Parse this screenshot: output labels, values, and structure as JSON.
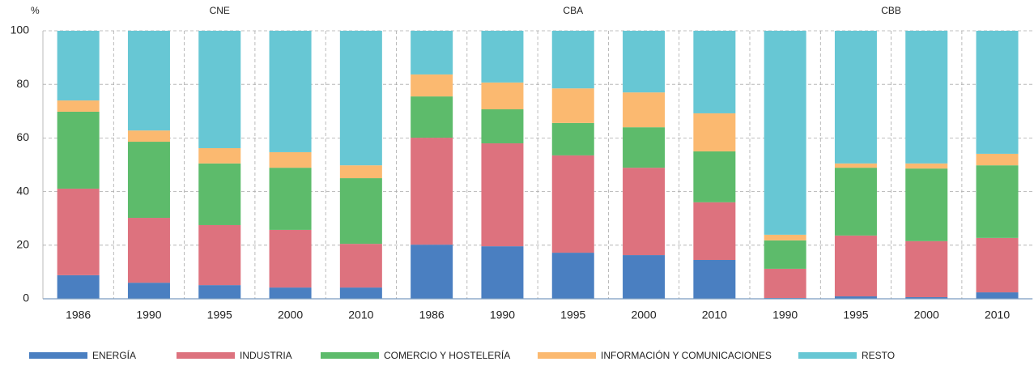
{
  "chart_data": {
    "type": "stacked-bar",
    "y_label": "%",
    "groups": [
      {
        "label": "CNE",
        "categories": [
          "1986",
          "1990",
          "1995",
          "2000",
          "2010"
        ]
      },
      {
        "label": "CBA",
        "categories": [
          "1986",
          "1990",
          "1995",
          "2000",
          "2010"
        ]
      },
      {
        "label": "CBB",
        "categories": [
          "1990",
          "1995",
          "2000",
          "2010"
        ]
      }
    ],
    "series": [
      {
        "name": "ENERGÍA",
        "color": "#4a7fc1",
        "values": [
          8.8,
          6.0,
          5.1,
          4.2,
          4.2,
          20.2,
          19.6,
          17.2,
          16.3,
          14.5,
          0.3,
          0.9,
          0.6,
          2.4
        ]
      },
      {
        "name": "INDUSTRIA",
        "color": "#dd727e",
        "values": [
          32.3,
          24.2,
          22.4,
          21.5,
          16.3,
          39.9,
          38.4,
          36.3,
          32.6,
          21.5,
          10.9,
          22.7,
          20.9,
          20.3
        ]
      },
      {
        "name": "COMERCIO Y HOSTELERÍA",
        "color": "#5dbb6b",
        "values": [
          28.7,
          28.4,
          23.0,
          23.2,
          24.5,
          15.4,
          12.7,
          12.1,
          15.1,
          19.0,
          10.6,
          25.3,
          27.1,
          27.1
        ]
      },
      {
        "name": "INFORMACIÓN Y COMUNICACIONES",
        "color": "#fbb970",
        "values": [
          4.2,
          4.2,
          5.7,
          5.8,
          4.8,
          8.2,
          10.0,
          12.9,
          13.0,
          14.2,
          2.1,
          1.6,
          1.9,
          4.3
        ]
      },
      {
        "name": "RESTO",
        "color": "#67c7d4",
        "values": [
          26.0,
          37.2,
          43.8,
          45.3,
          50.2,
          16.3,
          19.3,
          21.5,
          23.0,
          30.8,
          76.1,
          49.5,
          49.5,
          45.9
        ]
      }
    ],
    "ylim": [
      0,
      100
    ],
    "yticks": [
      0,
      20,
      40,
      60,
      80,
      100
    ],
    "grid": true
  }
}
